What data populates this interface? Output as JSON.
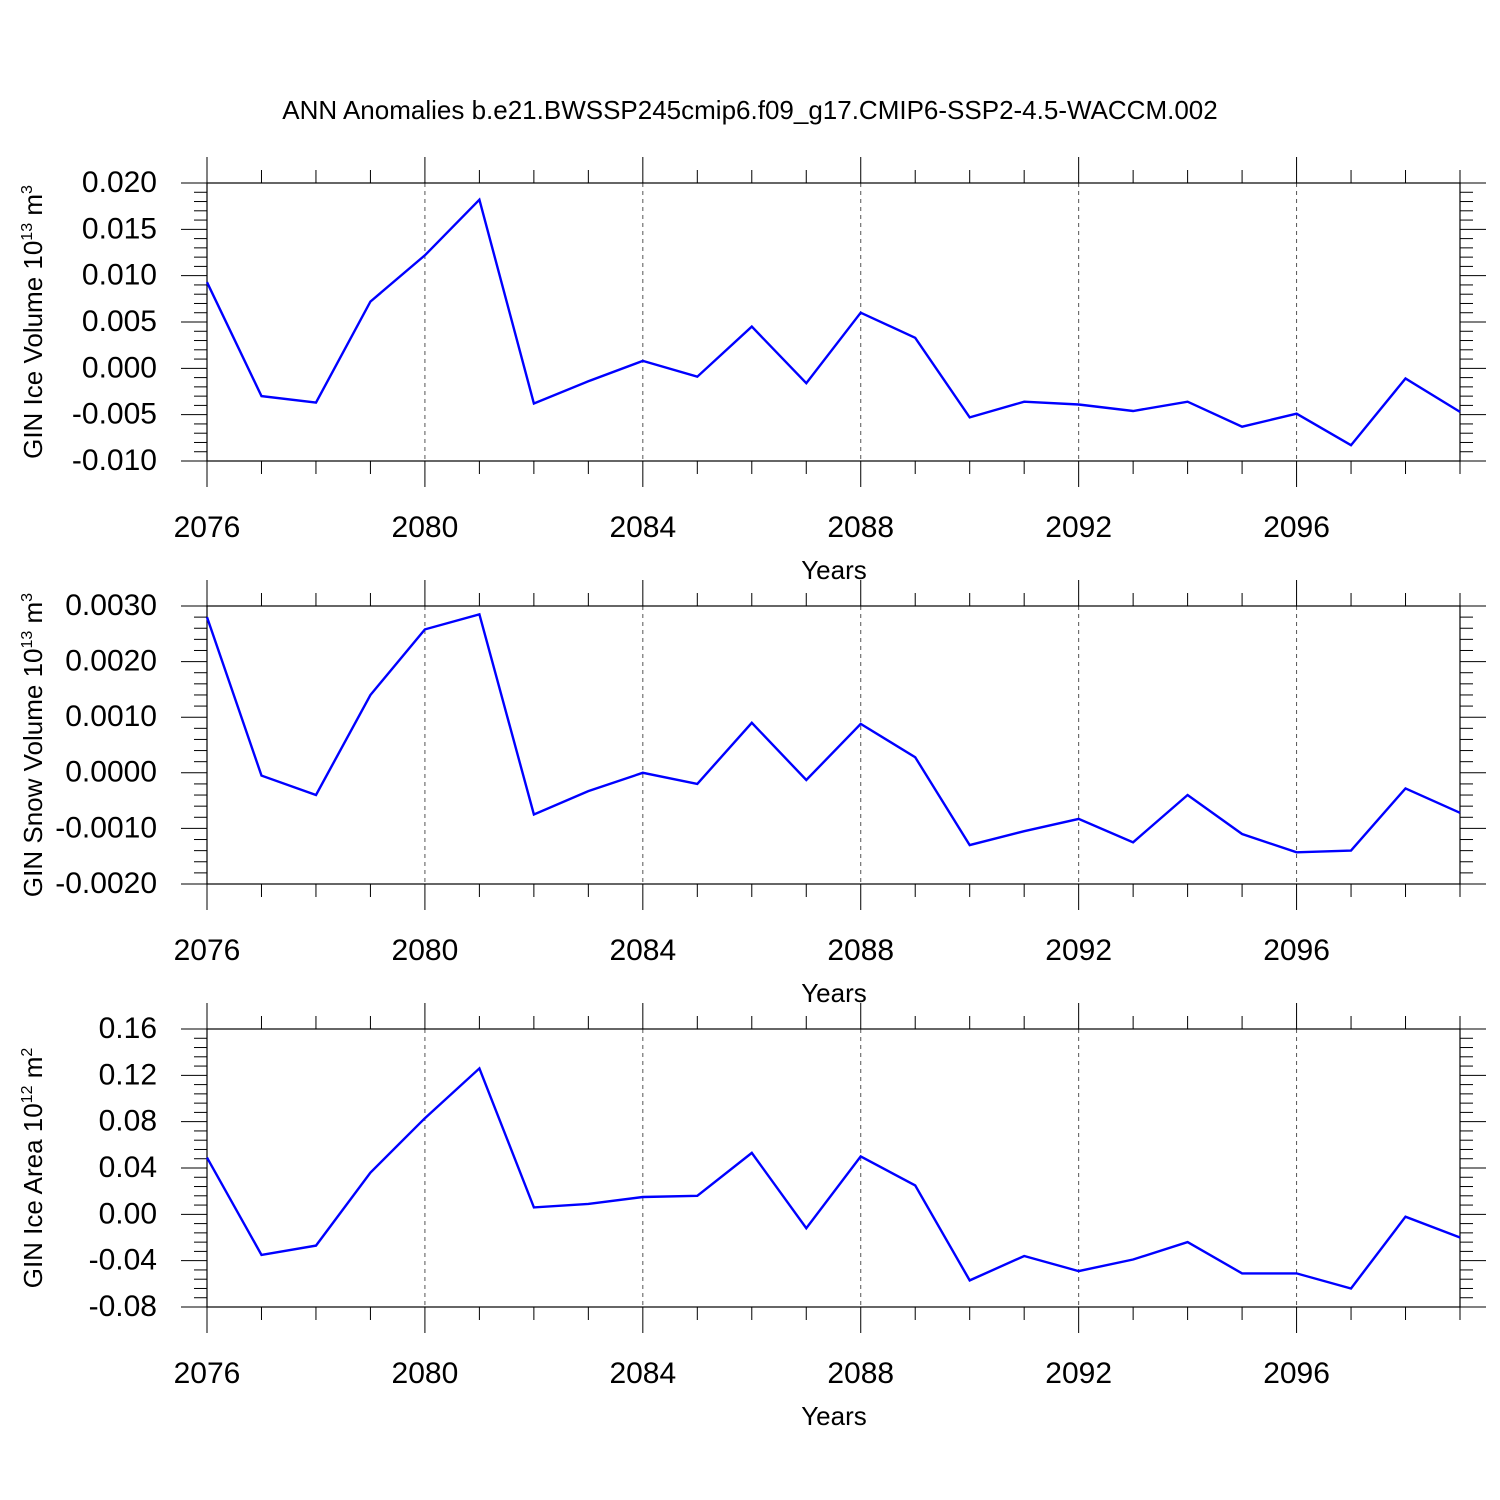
{
  "title": "ANN Anomalies b.e21.BWSSP245cmip6.f09_g17.CMIP6-SSP2-4.5-WACCM.002",
  "line_color": "#0000ff",
  "chart_data": [
    {
      "type": "line",
      "ylabel": "GIN Ice Volume 10",
      "ylabel_exp": "13",
      "ylabel_unit": " m",
      "ylabel_unit_exp": "3",
      "xlabel": "Years",
      "x": [
        2076,
        2077,
        2078,
        2079,
        2080,
        2081,
        2082,
        2083,
        2084,
        2085,
        2086,
        2087,
        2088,
        2089,
        2090,
        2091,
        2092,
        2093,
        2094,
        2095,
        2096,
        2097,
        2098,
        2099
      ],
      "values": [
        0.0093,
        -0.003,
        -0.0037,
        0.0072,
        0.0122,
        0.0182,
        -0.0038,
        -0.0014,
        0.0008,
        -0.0009,
        0.0045,
        -0.0016,
        0.006,
        0.0033,
        -0.0053,
        -0.0036,
        -0.0039,
        -0.0046,
        -0.0036,
        -0.0063,
        -0.0049,
        -0.0083,
        -0.0011,
        -0.0047
      ],
      "xlim": [
        2076,
        2099
      ],
      "ylim": [
        -0.01,
        0.02
      ],
      "yticks": [
        -0.01,
        -0.005,
        0.0,
        0.005,
        0.01,
        0.015,
        0.02
      ],
      "ytick_labels": [
        "-0.010",
        "-0.005",
        "0.000",
        "0.005",
        "0.010",
        "0.015",
        "0.020"
      ],
      "xticks": [
        2076,
        2080,
        2084,
        2088,
        2092,
        2096
      ],
      "xtick_labels": [
        "2076",
        "2080",
        "2084",
        "2088",
        "2092",
        "2096"
      ],
      "grid": "dashed vertical at major x ticks"
    },
    {
      "type": "line",
      "ylabel": "GIN Snow Volume 10",
      "ylabel_exp": "13",
      "ylabel_unit": " m",
      "ylabel_unit_exp": "3",
      "xlabel": "Years",
      "x": [
        2076,
        2077,
        2078,
        2079,
        2080,
        2081,
        2082,
        2083,
        2084,
        2085,
        2086,
        2087,
        2088,
        2089,
        2090,
        2091,
        2092,
        2093,
        2094,
        2095,
        2096,
        2097,
        2098,
        2099
      ],
      "values": [
        0.0028,
        -5e-05,
        -0.0004,
        0.0014,
        0.00258,
        0.00285,
        -0.00075,
        -0.00033,
        0.0,
        -0.0002,
        0.0009,
        -0.00013,
        0.00088,
        0.00028,
        -0.0013,
        -0.00105,
        -0.00083,
        -0.00125,
        -0.0004,
        -0.0011,
        -0.00143,
        -0.0014,
        -0.00028,
        -0.00072
      ],
      "xlim": [
        2076,
        2099
      ],
      "ylim": [
        -0.002,
        0.003
      ],
      "yticks": [
        -0.002,
        -0.001,
        0.0,
        0.001,
        0.002,
        0.003
      ],
      "ytick_labels": [
        "-0.0020",
        "-0.0010",
        "0.0000",
        "0.0010",
        "0.0020",
        "0.0030"
      ],
      "xticks": [
        2076,
        2080,
        2084,
        2088,
        2092,
        2096
      ],
      "xtick_labels": [
        "2076",
        "2080",
        "2084",
        "2088",
        "2092",
        "2096"
      ],
      "grid": "dashed vertical at major x ticks"
    },
    {
      "type": "line",
      "ylabel": "GIN Ice Area 10",
      "ylabel_exp": "12",
      "ylabel_unit": " m",
      "ylabel_unit_exp": "2",
      "xlabel": "Years",
      "x": [
        2076,
        2077,
        2078,
        2079,
        2080,
        2081,
        2082,
        2083,
        2084,
        2085,
        2086,
        2087,
        2088,
        2089,
        2090,
        2091,
        2092,
        2093,
        2094,
        2095,
        2096,
        2097,
        2098,
        2099
      ],
      "values": [
        0.049,
        -0.035,
        -0.027,
        0.036,
        0.083,
        0.126,
        0.006,
        0.009,
        0.015,
        0.016,
        0.053,
        -0.012,
        0.05,
        0.025,
        -0.057,
        -0.036,
        -0.049,
        -0.039,
        -0.024,
        -0.051,
        -0.051,
        -0.064,
        -0.002,
        -0.02
      ],
      "xlim": [
        2076,
        2099
      ],
      "ylim": [
        -0.08,
        0.16
      ],
      "yticks": [
        -0.08,
        -0.04,
        0.0,
        0.04,
        0.08,
        0.12,
        0.16
      ],
      "ytick_labels": [
        "-0.08",
        "-0.04",
        "0.00",
        "0.04",
        "0.08",
        "0.12",
        "0.16"
      ],
      "xticks": [
        2076,
        2080,
        2084,
        2088,
        2092,
        2096
      ],
      "xtick_labels": [
        "2076",
        "2080",
        "2084",
        "2088",
        "2092",
        "2096"
      ],
      "grid": "dashed vertical at major x ticks"
    }
  ]
}
